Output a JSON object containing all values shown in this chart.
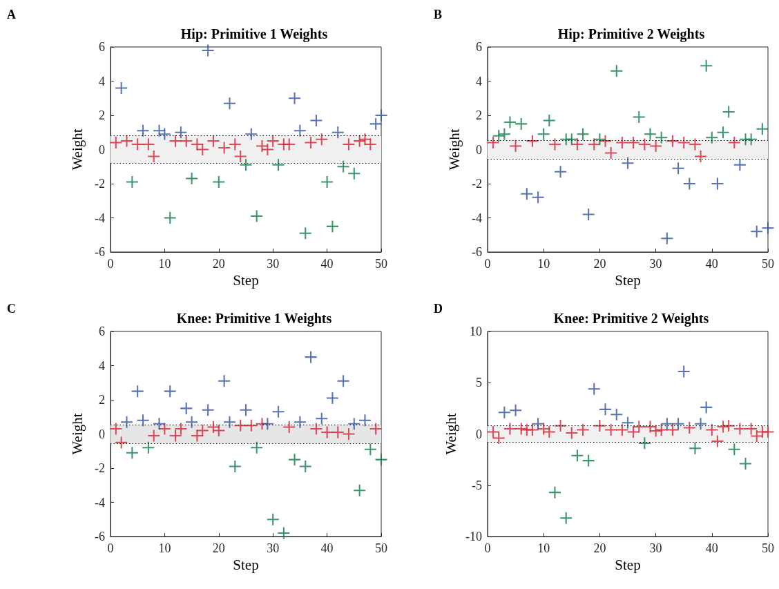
{
  "chart_data": [
    {
      "type": "scatter",
      "title": "Hip: Primitive 1 Weights",
      "xlabel": "Step",
      "ylabel": "Weight",
      "annotations": [
        "A"
      ],
      "xlim": [
        0,
        50
      ],
      "xticks": [
        0,
        10,
        20,
        30,
        40,
        50
      ],
      "ylim": [
        -6,
        6
      ],
      "yticks": [
        -6,
        -4,
        -2,
        0,
        2,
        4,
        6
      ],
      "grid": false,
      "marker": "cross",
      "bands": [
        {
          "axis": "y",
          "from": -0.8,
          "to": 0.8,
          "color": "#f0f0f0"
        }
      ],
      "ref_lines": [
        {
          "axis": "y",
          "value": 0.8,
          "color": "#000000",
          "line_style": "dotted"
        },
        {
          "axis": "y",
          "value": -0.8,
          "color": "#000000",
          "line_style": "dotted"
        }
      ],
      "series": [
        {
          "color": "#d62030",
          "x": [
            1,
            3,
            5,
            7,
            8,
            12,
            14,
            16,
            17,
            19,
            21,
            23,
            24,
            28,
            29,
            30,
            32,
            33,
            37,
            39,
            44,
            46,
            47,
            48
          ],
          "values": [
            0.4,
            0.5,
            0.3,
            0.3,
            -0.4,
            0.5,
            0.5,
            0.3,
            0.0,
            0.5,
            0.1,
            0.3,
            -0.4,
            0.2,
            0.0,
            0.5,
            0.3,
            0.3,
            0.4,
            0.6,
            0.3,
            0.5,
            0.6,
            0.3
          ]
        },
        {
          "color": "#2a4fa0",
          "x": [
            2,
            6,
            9,
            10,
            13,
            18,
            22,
            26,
            34,
            35,
            38,
            42,
            49,
            50
          ],
          "values": [
            3.6,
            1.1,
            1.1,
            0.9,
            1.0,
            5.8,
            2.7,
            0.9,
            3.0,
            1.1,
            1.7,
            1.0,
            1.5,
            2.0
          ]
        },
        {
          "color": "#0a7a45",
          "x": [
            4,
            11,
            15,
            20,
            25,
            27,
            31,
            36,
            40,
            41,
            43,
            45
          ],
          "values": [
            -1.9,
            -4.0,
            -1.7,
            -1.9,
            -0.9,
            -3.9,
            -0.9,
            -4.9,
            -1.9,
            -4.5,
            -1.0,
            -1.4
          ]
        }
      ]
    },
    {
      "type": "scatter",
      "title": "Hip: Primitive 2 Weights",
      "xlabel": "Step",
      "ylabel": "Weight",
      "annotations": [
        "B"
      ],
      "xlim": [
        0,
        50
      ],
      "xticks": [
        0,
        10,
        20,
        30,
        40,
        50
      ],
      "ylim": [
        -6,
        6
      ],
      "yticks": [
        -6,
        -4,
        -2,
        0,
        2,
        4,
        6
      ],
      "grid": false,
      "marker": "cross",
      "bands": [
        {
          "axis": "y",
          "from": -0.55,
          "to": 0.55,
          "color": "#f0f0f0"
        }
      ],
      "ref_lines": [
        {
          "axis": "y",
          "value": 0.55,
          "color": "#000000",
          "line_style": "dotted"
        },
        {
          "axis": "y",
          "value": -0.55,
          "color": "#000000",
          "line_style": "dotted"
        }
      ],
      "series": [
        {
          "color": "#d62030",
          "x": [
            1,
            5,
            8,
            12,
            16,
            19,
            21,
            22,
            24,
            26,
            28,
            30,
            33,
            35,
            37,
            38,
            44
          ],
          "values": [
            0.4,
            0.2,
            0.5,
            0.3,
            0.3,
            0.3,
            0.5,
            -0.2,
            0.4,
            0.4,
            0.3,
            0.2,
            0.5,
            0.4,
            0.3,
            -0.4,
            0.4
          ]
        },
        {
          "color": "#2a4fa0",
          "x": [
            7,
            9,
            13,
            18,
            25,
            32,
            34,
            36,
            41,
            45,
            48,
            50
          ],
          "values": [
            -2.6,
            -2.8,
            -1.3,
            -3.8,
            -0.8,
            -5.2,
            -1.1,
            -2.0,
            -2.0,
            -0.9,
            -4.8,
            -4.6
          ]
        },
        {
          "color": "#0a7a45",
          "x": [
            2,
            3,
            4,
            6,
            10,
            11,
            14,
            15,
            17,
            20,
            23,
            27,
            29,
            31,
            39,
            40,
            42,
            43,
            46,
            47,
            49
          ],
          "values": [
            0.8,
            0.9,
            1.6,
            1.5,
            0.9,
            1.7,
            0.6,
            0.6,
            0.9,
            0.6,
            4.6,
            1.9,
            0.9,
            0.7,
            4.9,
            0.7,
            1.0,
            2.2,
            0.6,
            0.6,
            1.2
          ]
        }
      ]
    },
    {
      "type": "scatter",
      "title": "Knee: Primitive 1 Weights",
      "xlabel": "Step",
      "ylabel": "Weight",
      "annotations": [
        "C"
      ],
      "xlim": [
        0,
        50
      ],
      "xticks": [
        0,
        10,
        20,
        30,
        40,
        50
      ],
      "ylim": [
        -6,
        6
      ],
      "yticks": [
        -6,
        -4,
        -2,
        0,
        2,
        4,
        6
      ],
      "grid": false,
      "marker": "cross",
      "bands": [
        {
          "axis": "y",
          "from": -0.55,
          "to": 0.55,
          "color": "#e6e6e6"
        }
      ],
      "ref_lines": [
        {
          "axis": "y",
          "value": 0.55,
          "color": "#000000",
          "line_style": "dotted"
        },
        {
          "axis": "y",
          "value": -0.55,
          "color": "#000000",
          "line_style": "dotted"
        }
      ],
      "series": [
        {
          "color": "#d62030",
          "x": [
            1,
            2,
            8,
            10,
            12,
            13,
            16,
            17,
            19,
            20,
            24,
            26,
            28,
            33,
            38,
            40,
            42,
            44,
            49
          ],
          "values": [
            0.3,
            -0.5,
            -0.1,
            0.3,
            -0.1,
            0.3,
            -0.1,
            0.2,
            0.4,
            0.2,
            0.5,
            0.5,
            0.6,
            0.4,
            0.3,
            0.1,
            0.1,
            0.0,
            0.3
          ]
        },
        {
          "color": "#2a4fa0",
          "x": [
            3,
            5,
            6,
            9,
            11,
            14,
            15,
            18,
            21,
            22,
            25,
            29,
            31,
            35,
            37,
            39,
            41,
            43,
            45,
            47
          ],
          "values": [
            0.7,
            2.5,
            0.8,
            0.6,
            2.5,
            1.5,
            0.7,
            1.4,
            3.1,
            0.7,
            1.4,
            0.6,
            1.3,
            0.7,
            4.5,
            0.9,
            2.1,
            3.1,
            0.6,
            0.8
          ]
        },
        {
          "color": "#0a7a45",
          "x": [
            4,
            7,
            23,
            27,
            30,
            32,
            34,
            36,
            46,
            48,
            50
          ],
          "values": [
            -1.1,
            -0.8,
            -1.9,
            -0.8,
            -5.0,
            -5.8,
            -1.5,
            -1.9,
            -3.3,
            -0.9,
            -1.5
          ]
        }
      ]
    },
    {
      "type": "scatter",
      "title": "Knee: Primitive 2 Weights",
      "xlabel": "Step",
      "ylabel": "Weight",
      "annotations": [
        "D"
      ],
      "xlim": [
        0,
        50
      ],
      "xticks": [
        0,
        10,
        20,
        30,
        40,
        50
      ],
      "ylim": [
        -10,
        10
      ],
      "yticks": [
        -10,
        -5,
        0,
        5,
        10
      ],
      "grid": false,
      "marker": "cross",
      "bands": [
        {
          "axis": "y",
          "from": -0.8,
          "to": 0.8,
          "color": "#f0f0f0"
        }
      ],
      "ref_lines": [
        {
          "axis": "y",
          "value": 0.8,
          "color": "#000000",
          "line_style": "dotted"
        },
        {
          "axis": "y",
          "value": -0.8,
          "color": "#000000",
          "line_style": "dotted"
        }
      ],
      "series": [
        {
          "color": "#d62030",
          "x": [
            1,
            2,
            4,
            6,
            7,
            8,
            10,
            11,
            13,
            15,
            17,
            20,
            22,
            24,
            26,
            27,
            29,
            30,
            31,
            33,
            36,
            40,
            41,
            42,
            43,
            45,
            47,
            48,
            49,
            50
          ],
          "values": [
            0.2,
            -0.4,
            0.5,
            0.5,
            0.4,
            0.4,
            0.5,
            0.2,
            0.8,
            0.1,
            0.4,
            0.8,
            0.4,
            0.4,
            0.2,
            0.7,
            0.7,
            0.3,
            0.4,
            0.4,
            0.6,
            0.4,
            -0.7,
            0.7,
            0.8,
            0.5,
            0.5,
            -0.2,
            0.2,
            0.2
          ]
        },
        {
          "color": "#2a4fa0",
          "x": [
            3,
            5,
            9,
            19,
            21,
            23,
            25,
            32,
            34,
            35,
            38,
            39
          ],
          "values": [
            2.1,
            2.3,
            1.0,
            4.4,
            2.4,
            1.9,
            1.1,
            1.0,
            1.0,
            6.1,
            1.0,
            2.6
          ]
        },
        {
          "color": "#0a7a45",
          "x": [
            12,
            14,
            16,
            18,
            28,
            37,
            44,
            46
          ],
          "values": [
            -5.7,
            -8.2,
            -2.1,
            -2.6,
            -0.9,
            -1.4,
            -1.5,
            -2.9
          ]
        }
      ]
    }
  ]
}
